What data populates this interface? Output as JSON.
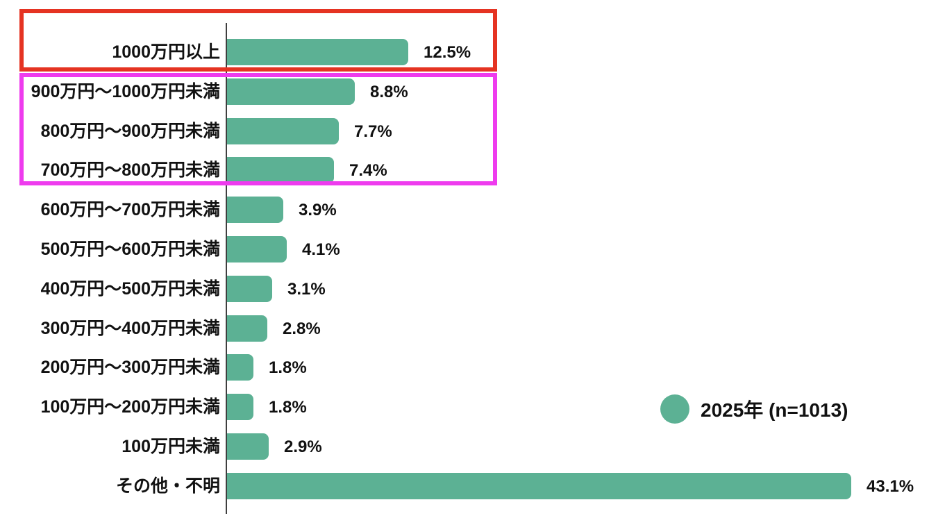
{
  "chart_data": {
    "type": "bar",
    "orientation": "horizontal",
    "title": "",
    "xlabel": "",
    "ylabel": "",
    "xlim": [
      0,
      45
    ],
    "grid": false,
    "bar_color": "#5cb194",
    "axis_line_color": "#3f3f3f",
    "categories": [
      "1000万円以上",
      "900万円～1000万円未満",
      "800万円～900万円未満",
      "700万円～800万円未満",
      "600万円～700万円未満",
      "500万円～600万円未満",
      "400万円～500万円未満",
      "300万円～400万円未満",
      "200万円～300万円未満",
      "100万円～200万円未満",
      "100万円未満",
      "その他・不明"
    ],
    "values": [
      12.5,
      8.8,
      7.7,
      7.4,
      3.9,
      4.1,
      3.1,
      2.8,
      1.8,
      1.8,
      2.9,
      43.1
    ],
    "value_labels": [
      "12.5%",
      "8.8%",
      "7.7%",
      "7.4%",
      "3.9%",
      "4.1%",
      "3.1%",
      "2.8%",
      "1.8%",
      "1.8%",
      "2.9%",
      "43.1%"
    ],
    "legend": {
      "position": "middle-right",
      "label": "2025年 (n=1013)",
      "marker_color": "#5cb194"
    },
    "annotations": [
      {
        "name": "red-highlight-box",
        "color": "#e53322",
        "rows": [
          "1000万円以上"
        ]
      },
      {
        "name": "magenta-highlight-box",
        "color": "#ee3bee",
        "rows": [
          "900万円～1000万円未満",
          "800万円～900万円未満",
          "700万円～800万円未満"
        ]
      }
    ]
  }
}
